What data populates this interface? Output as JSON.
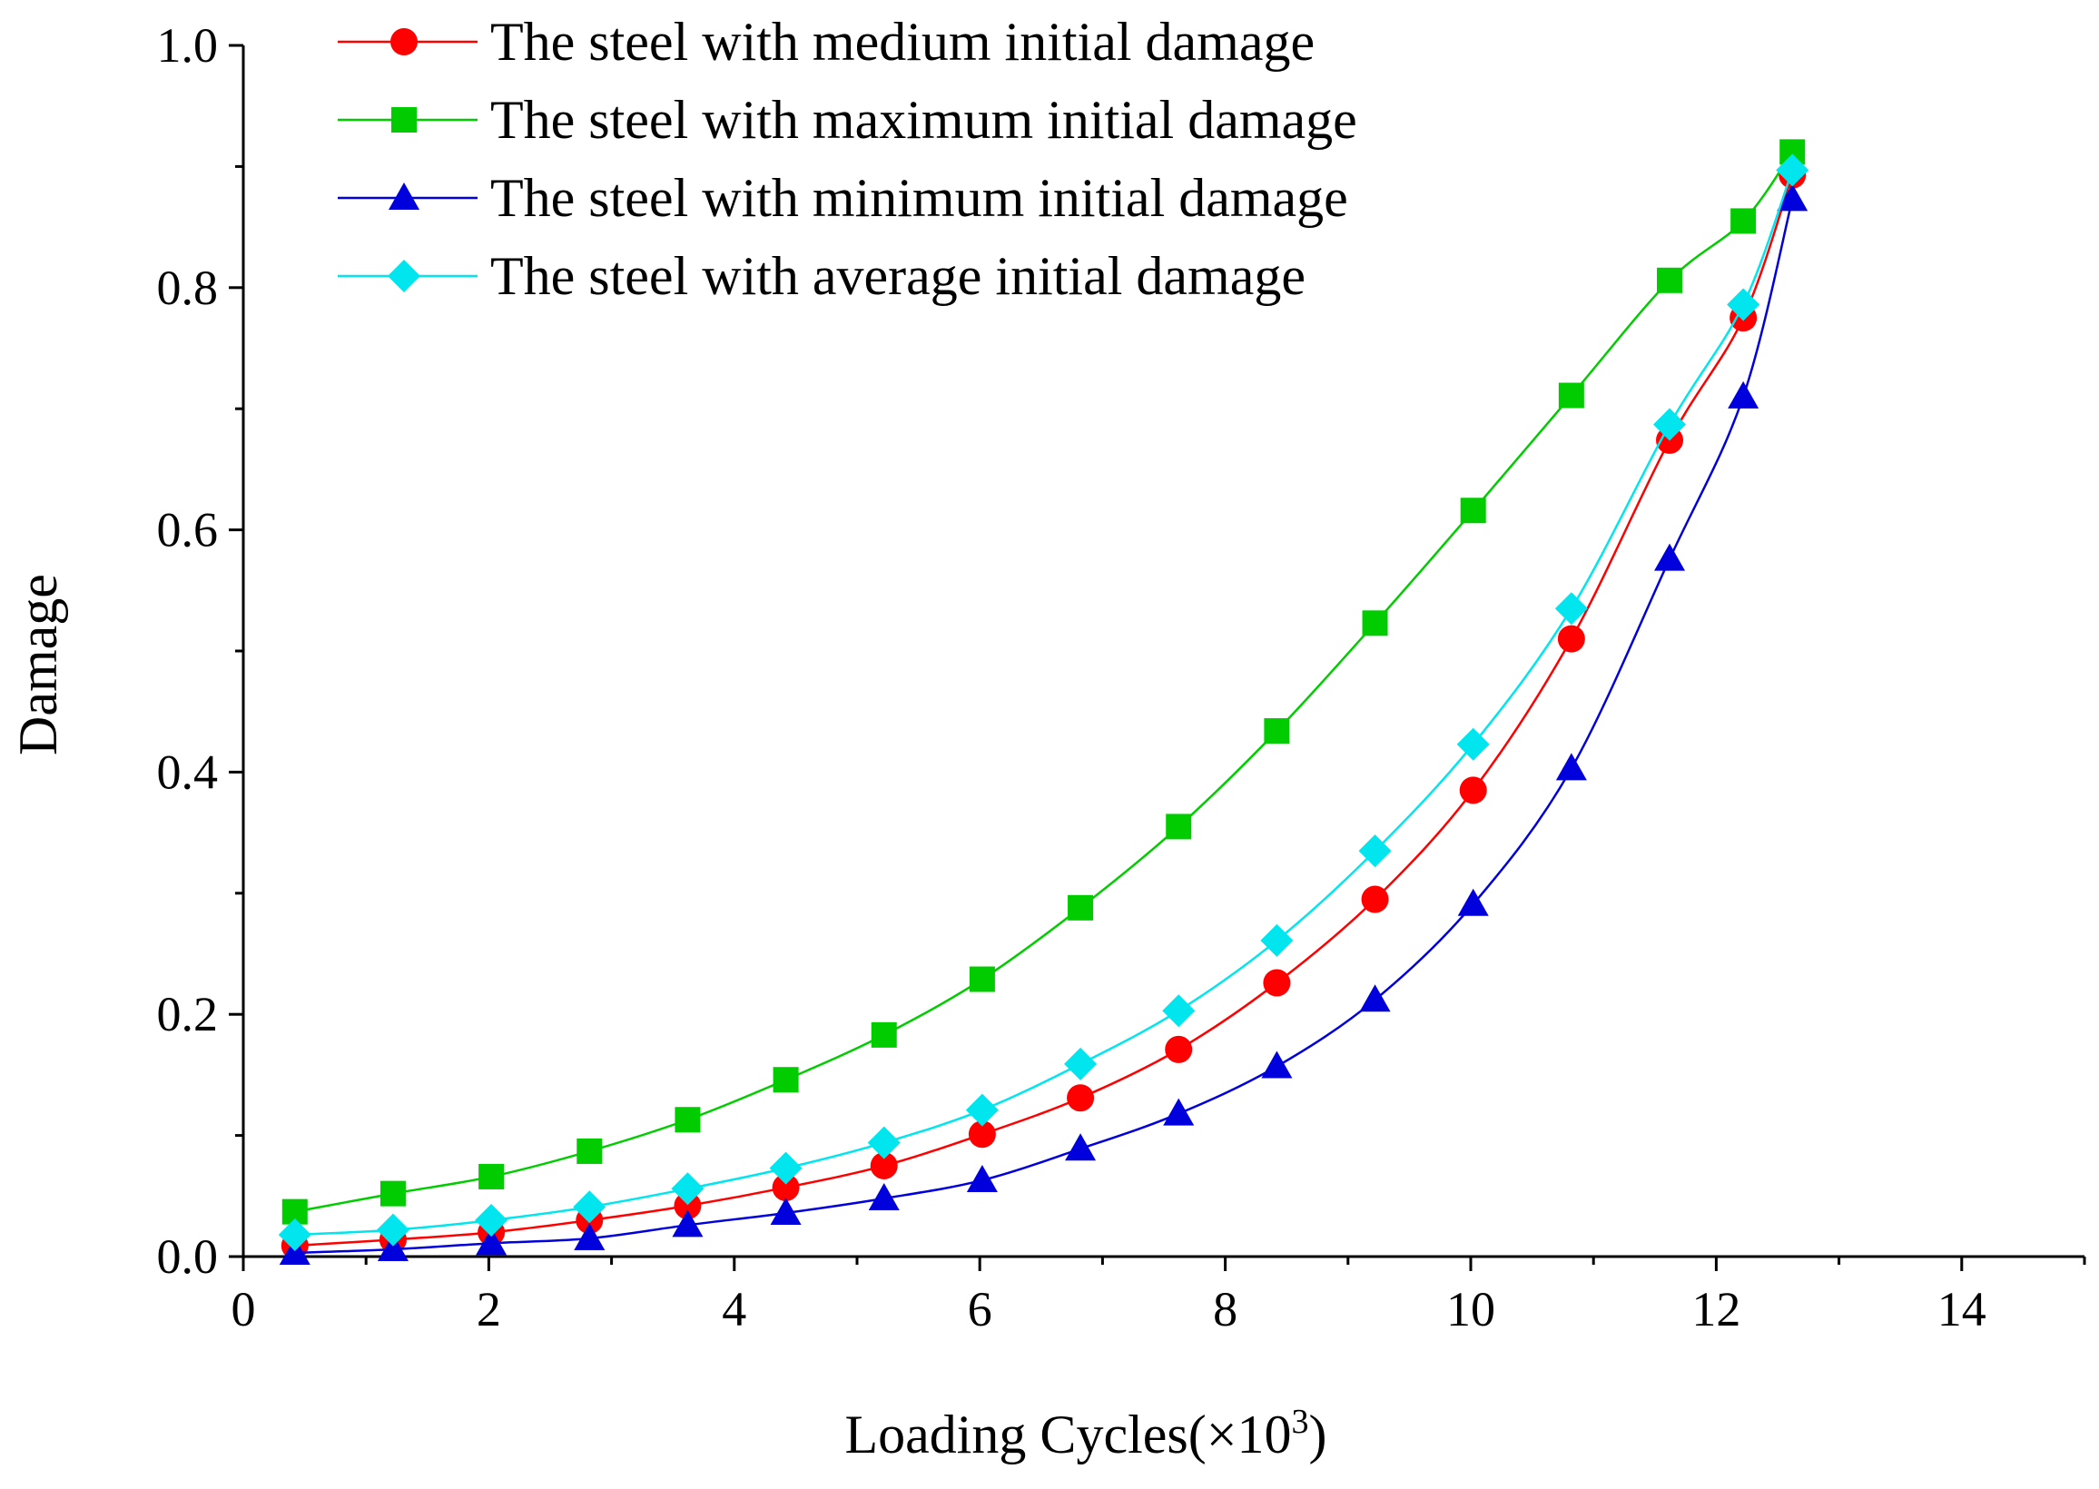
{
  "chart_data": {
    "type": "line",
    "title": "",
    "xlabel": "Loading Cycles(×10",
    "xlabel_sup": "3",
    "xlabel_close": ")",
    "ylabel": "Damage",
    "xlim": [
      0,
      15
    ],
    "ylim": [
      0,
      1.0
    ],
    "x_ticks": [
      "0",
      "2",
      "4",
      "6",
      "8",
      "10",
      "12",
      "14"
    ],
    "y_ticks": [
      "0.0",
      "0.2",
      "0.4",
      "0.6",
      "0.8",
      "1.0"
    ],
    "legend_position": "top-left",
    "series": [
      {
        "name": "The steel with medium initial damage",
        "color": "#ff0000",
        "marker": "circle",
        "x": [
          0.42,
          1.22,
          2.02,
          2.82,
          3.62,
          4.42,
          5.22,
          6.02,
          6.82,
          7.62,
          8.42,
          9.22,
          10.02,
          10.82,
          11.62,
          12.22,
          12.62
        ],
        "y": [
          0.009,
          0.014,
          0.02,
          0.03,
          0.042,
          0.057,
          0.075,
          0.101,
          0.131,
          0.171,
          0.226,
          0.295,
          0.385,
          0.51,
          0.674,
          0.775,
          0.893
        ]
      },
      {
        "name": "The steel with maximum initial damage",
        "color": "#00cc00",
        "marker": "square",
        "x": [
          0.42,
          1.22,
          2.02,
          2.82,
          3.62,
          4.42,
          5.22,
          6.02,
          6.82,
          7.62,
          8.42,
          9.22,
          10.02,
          10.82,
          11.62,
          12.22,
          12.62
        ],
        "y": [
          0.037,
          0.052,
          0.066,
          0.087,
          0.113,
          0.146,
          0.183,
          0.229,
          0.288,
          0.355,
          0.434,
          0.523,
          0.616,
          0.711,
          0.806,
          0.855,
          0.912
        ]
      },
      {
        "name": "The steel with minimum initial damage",
        "color": "#0000dd",
        "marker": "triangle",
        "x": [
          0.42,
          1.22,
          2.02,
          2.82,
          3.62,
          4.42,
          5.22,
          6.02,
          6.82,
          7.62,
          8.42,
          9.22,
          10.02,
          10.82,
          11.62,
          12.22,
          12.62
        ],
        "y": [
          0.003,
          0.006,
          0.011,
          0.015,
          0.026,
          0.036,
          0.048,
          0.063,
          0.089,
          0.118,
          0.157,
          0.212,
          0.291,
          0.403,
          0.576,
          0.71,
          0.873
        ]
      },
      {
        "name": "The steel with average initial damage",
        "color": "#00e5ee",
        "marker": "diamond",
        "x": [
          0.42,
          1.22,
          2.02,
          2.82,
          3.62,
          4.42,
          5.22,
          6.02,
          6.82,
          7.62,
          8.42,
          9.22,
          10.02,
          10.82,
          11.62,
          12.22,
          12.62
        ],
        "y": [
          0.018,
          0.022,
          0.03,
          0.041,
          0.056,
          0.073,
          0.094,
          0.121,
          0.159,
          0.203,
          0.261,
          0.335,
          0.423,
          0.535,
          0.687,
          0.786,
          0.897
        ]
      }
    ]
  }
}
